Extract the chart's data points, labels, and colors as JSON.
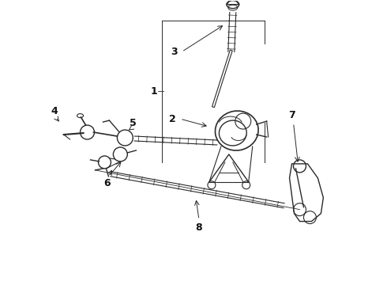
{
  "bg_color": "#ffffff",
  "line_color": "#2a2a2a",
  "label_color": "#111111",
  "figsize": [
    4.9,
    3.6
  ],
  "dpi": 100
}
